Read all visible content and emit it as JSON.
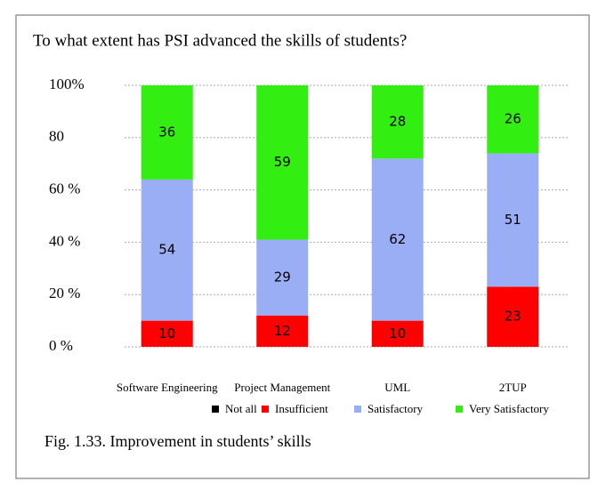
{
  "chart_data": {
    "type": "stacked_bar",
    "title": "To what extent has PSI advanced the skills of students?",
    "caption": "Fig. 1.33. Improvement in students’ skills",
    "categories": [
      "Software Engineering",
      "Project Management",
      "UML",
      "2TUP"
    ],
    "series": [
      {
        "name": "Not all",
        "color": "#000000",
        "values": [
          0,
          0,
          0,
          0
        ]
      },
      {
        "name": "Insufficient",
        "color": "#ff0000",
        "values": [
          10,
          12,
          10,
          23
        ]
      },
      {
        "name": "Satisfactory",
        "color": "#9aaef5",
        "values": [
          54,
          29,
          62,
          51
        ]
      },
      {
        "name": "Very Satisfactory",
        "color": "#33ee11",
        "values": [
          36,
          59,
          28,
          26
        ]
      }
    ],
    "ylim": [
      0,
      100
    ],
    "yticks": [
      {
        "value": 0,
        "label": "0 %"
      },
      {
        "value": 20,
        "label": "20 %"
      },
      {
        "value": 40,
        "label": "40 %"
      },
      {
        "value": 60,
        "label": "60 %"
      },
      80,
      {
        "value": 100,
        "label": "100%"
      }
    ],
    "grid": true
  }
}
